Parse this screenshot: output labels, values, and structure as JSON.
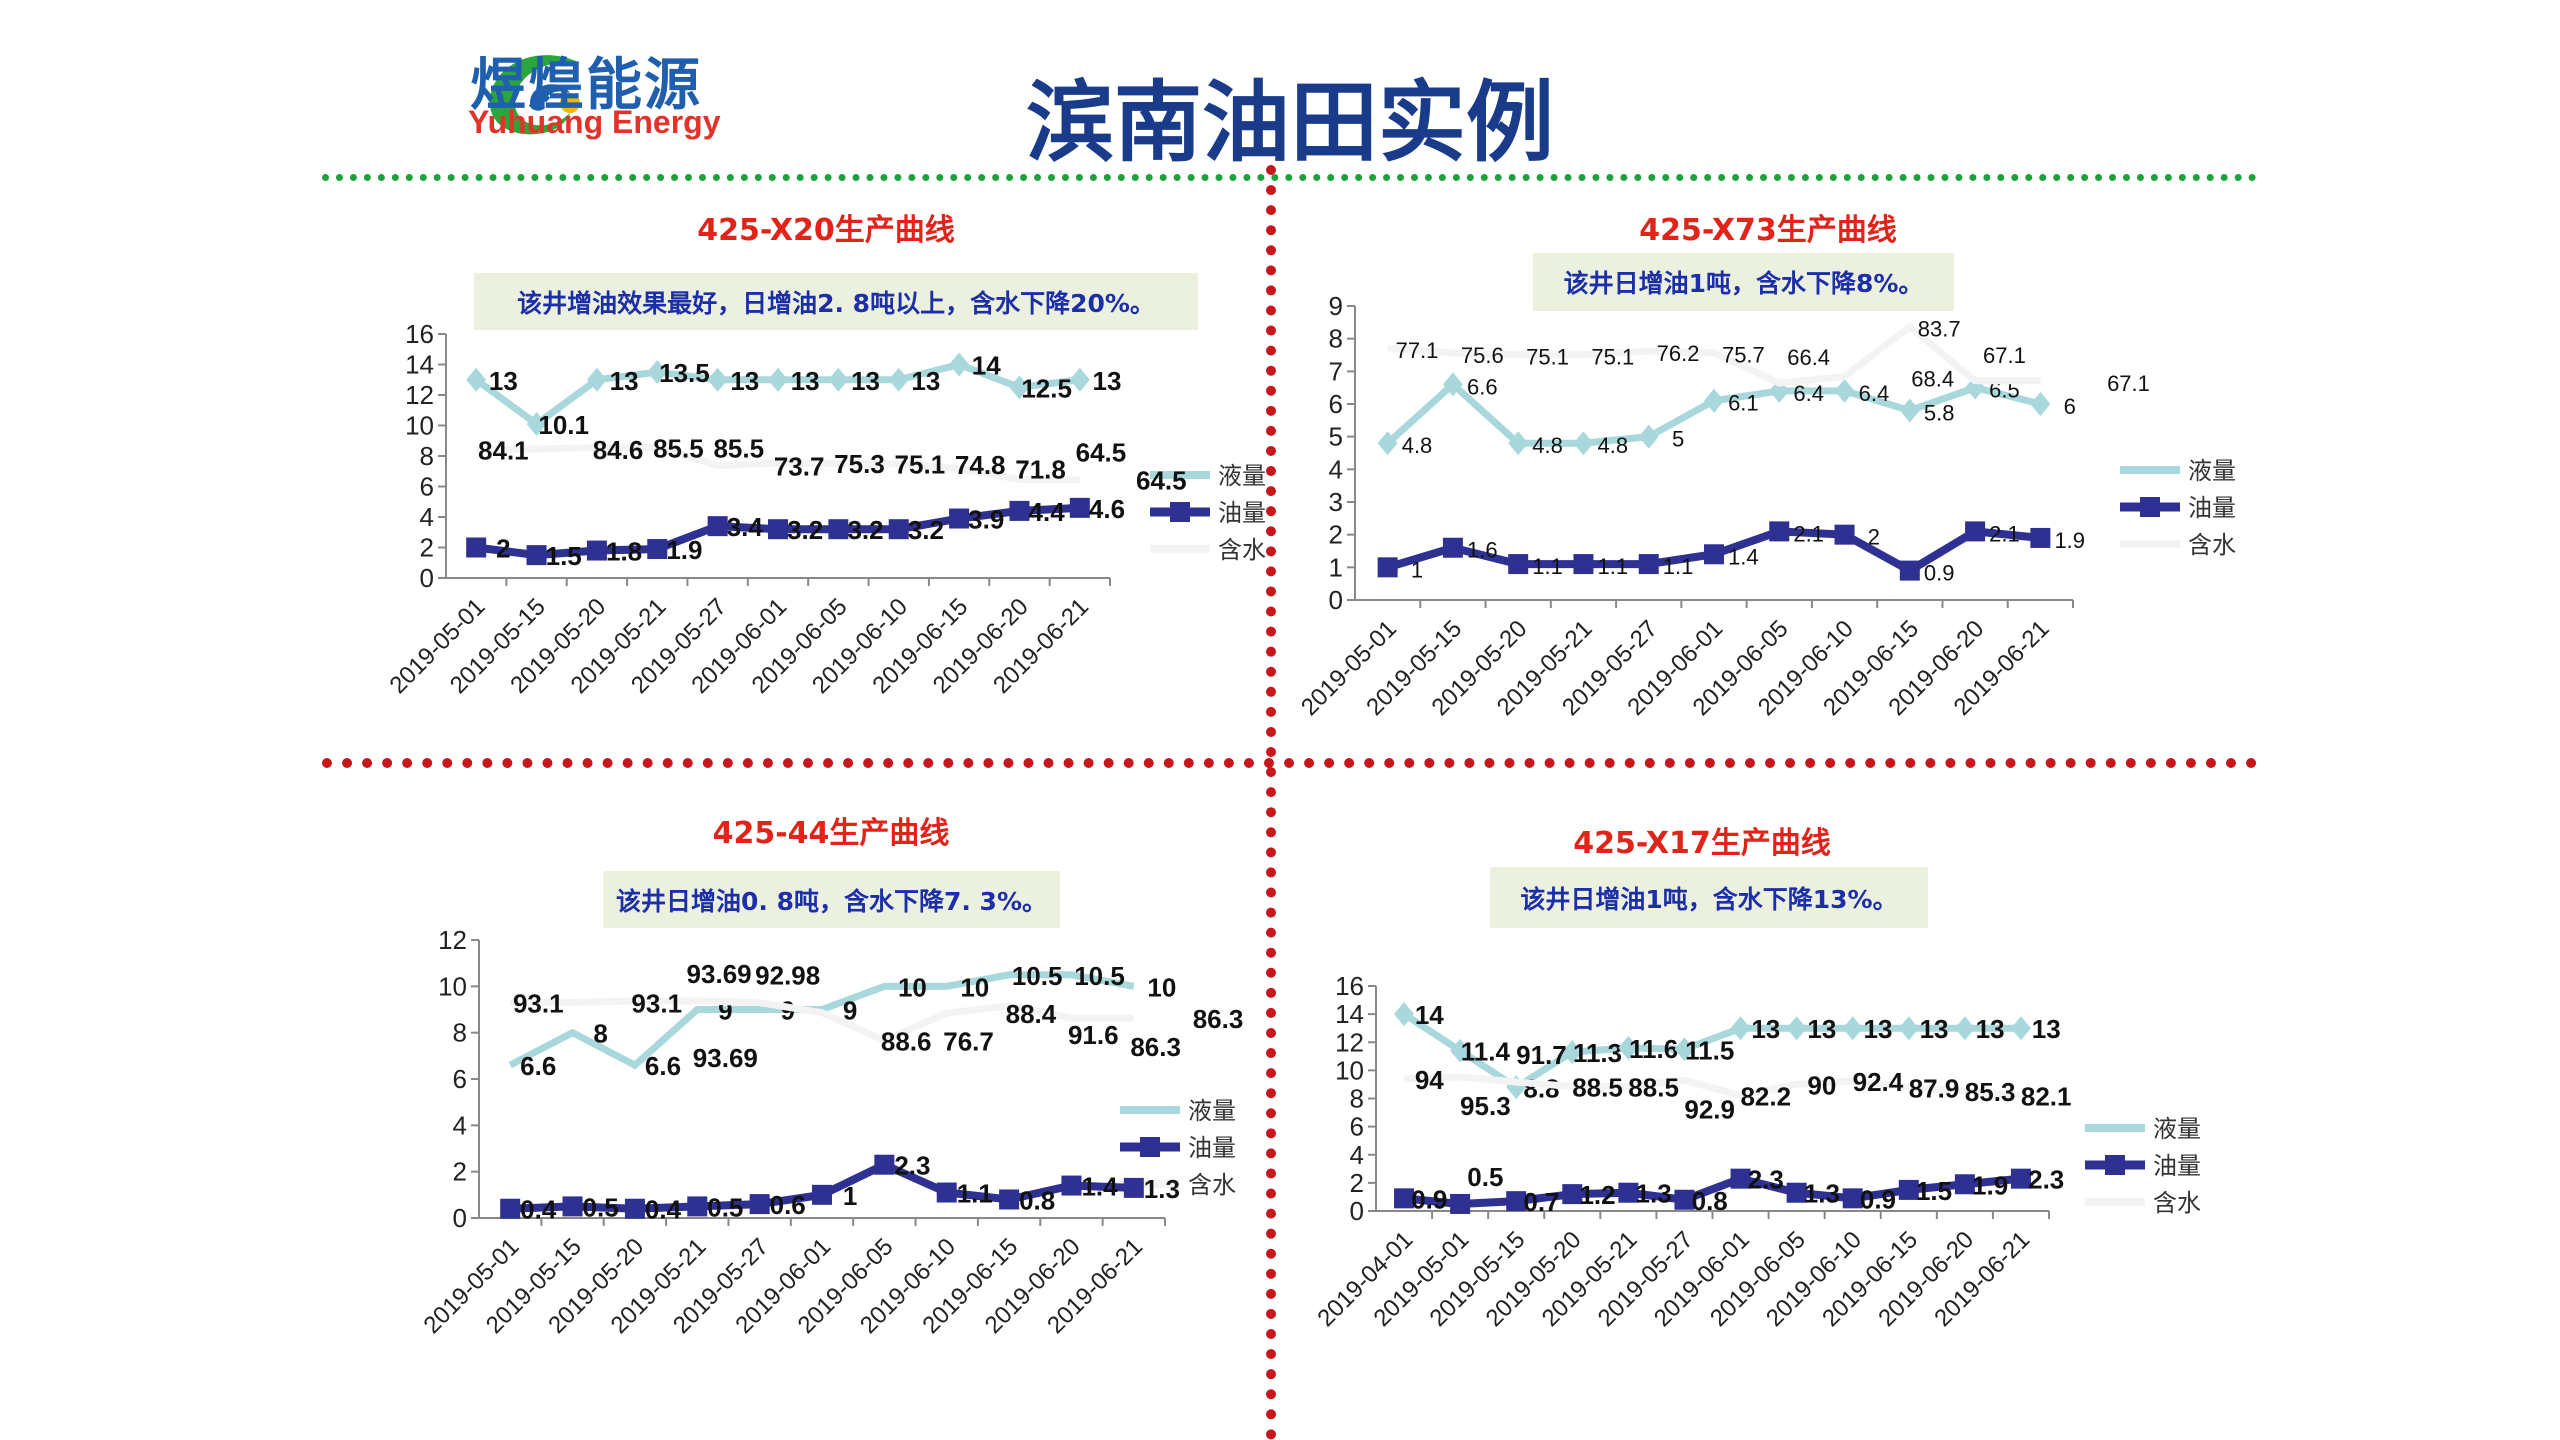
{
  "header": {
    "logo_cn": "煜煌能源",
    "logo_en": "Yuhuang Energy",
    "title": "滨南油田实例"
  },
  "colors": {
    "liquid": "#a8d8db",
    "oil": "#2e3192",
    "water": "#f3f3f3",
    "title_red": "#e2231a",
    "note_blue": "#1d2fa8"
  },
  "chart_data": [
    {
      "type": "line",
      "title": "425-X20生产曲线",
      "note": "该井增油效果最好，日增油2. 8吨以上，含水下降20%。",
      "categories": [
        "2019-05-01",
        "2019-05-15",
        "2019-05-20",
        "2019-05-21",
        "2019-05-27",
        "2019-06-01",
        "2019-06-05",
        "2019-06-10",
        "2019-06-15",
        "2019-06-20",
        "2019-06-21"
      ],
      "ylim": [
        0,
        16
      ],
      "yticks": [
        0,
        2,
        4,
        6,
        8,
        10,
        12,
        14,
        16
      ],
      "water_scale": 0.1,
      "legend": [
        "液量",
        "油量",
        "含水"
      ],
      "legend_position": "right",
      "series": [
        {
          "name": "液量",
          "values": [
            13,
            10.1,
            13,
            13.5,
            13,
            13,
            13,
            13,
            14,
            12.5,
            13
          ]
        },
        {
          "name": "油量",
          "values": [
            2,
            1.5,
            1.8,
            1.9,
            3.4,
            3.2,
            3.2,
            3.2,
            3.9,
            4.4,
            4.6
          ]
        },
        {
          "name": "含水",
          "values": [
            84.1,
            84.6,
            85.5,
            85.5,
            73.7,
            75.3,
            75.1,
            74.8,
            71.8,
            64.5,
            64.5
          ]
        }
      ]
    },
    {
      "type": "line",
      "title": "425-X73生产曲线",
      "note": "该井日增油1吨，含水下降8%。",
      "categories": [
        "2019-05-01",
        "2019-05-15",
        "2019-05-20",
        "2019-05-21",
        "2019-05-27",
        "2019-06-01",
        "2019-06-05",
        "2019-06-10",
        "2019-06-15",
        "2019-06-20",
        "2019-06-21"
      ],
      "ylim": [
        0,
        9
      ],
      "yticks": [
        0,
        1,
        2,
        3,
        4,
        5,
        6,
        7,
        8,
        9
      ],
      "water_scale": 0.1,
      "legend": [
        "液量",
        "油量",
        "含水"
      ],
      "legend_position": "right",
      "series": [
        {
          "name": "液量",
          "values": [
            4.8,
            6.6,
            4.8,
            4.8,
            5,
            6.1,
            6.4,
            6.4,
            5.8,
            6.5,
            6
          ]
        },
        {
          "name": "油量",
          "values": [
            1,
            1.6,
            1.1,
            1.1,
            1.1,
            1.4,
            2.1,
            2,
            0.9,
            2.1,
            1.9
          ]
        },
        {
          "name": "含水",
          "values": [
            77.1,
            75.6,
            75.1,
            75.1,
            76.2,
            75.7,
            66.4,
            68.4,
            83.7,
            67.1,
            67.1
          ]
        }
      ]
    },
    {
      "type": "line",
      "title": "425-44生产曲线",
      "note": "该井日增油0. 8吨，含水下降7. 3%。",
      "categories": [
        "2019-05-01",
        "2019-05-15",
        "2019-05-20",
        "2019-05-21",
        "2019-05-27",
        "2019-06-01",
        "2019-06-05",
        "2019-06-10",
        "2019-06-15",
        "2019-06-20",
        "2019-06-21"
      ],
      "ylim": [
        0,
        12
      ],
      "yticks": [
        0,
        2,
        4,
        6,
        8,
        10,
        12
      ],
      "water_scale": 0.1,
      "legend": [
        "液量",
        "油量",
        "含水"
      ],
      "legend_position": "right",
      "series": [
        {
          "name": "液量",
          "values": [
            6.6,
            8,
            6.6,
            9,
            9,
            9,
            10,
            10,
            10.5,
            10.5,
            10
          ]
        },
        {
          "name": "油量",
          "values": [
            0.4,
            0.5,
            0.4,
            0.5,
            0.6,
            1,
            2.3,
            1.1,
            0.8,
            1.4,
            1.3
          ]
        },
        {
          "name": "含水",
          "values": [
            93.1,
            93.1,
            93.69,
            93.69,
            92.98,
            88.6,
            76.7,
            88.4,
            91.6,
            86.3,
            86.3
          ]
        }
      ]
    },
    {
      "type": "line",
      "title": "425-X17生产曲线",
      "note": "该井日增油1吨，含水下降13%。",
      "categories": [
        "2019-04-01",
        "2019-05-01",
        "2019-05-15",
        "2019-05-20",
        "2019-05-21",
        "2019-05-27",
        "2019-06-01",
        "2019-06-05",
        "2019-06-10",
        "2019-06-15",
        "2019-06-20",
        "2019-06-21"
      ],
      "ylim": [
        0,
        16
      ],
      "yticks": [
        0,
        2,
        4,
        6,
        8,
        10,
        12,
        14,
        16
      ],
      "water_scale": 0.1,
      "legend": [
        "液量",
        "油量",
        "含水"
      ],
      "legend_position": "right",
      "series": [
        {
          "name": "液量",
          "values": [
            14,
            11.4,
            8.8,
            11.3,
            11.6,
            11.5,
            13,
            13,
            13,
            13,
            13,
            13
          ]
        },
        {
          "name": "油量",
          "values": [
            0.9,
            0.5,
            0.7,
            1.2,
            1.3,
            0.8,
            2.3,
            1.3,
            0.9,
            1.5,
            1.9,
            2.3
          ]
        },
        {
          "name": "含水",
          "values": [
            94,
            95.3,
            91.7,
            88.5,
            88.5,
            92.9,
            82.2,
            90,
            92.4,
            87.9,
            85.3,
            82.1
          ]
        }
      ]
    }
  ]
}
